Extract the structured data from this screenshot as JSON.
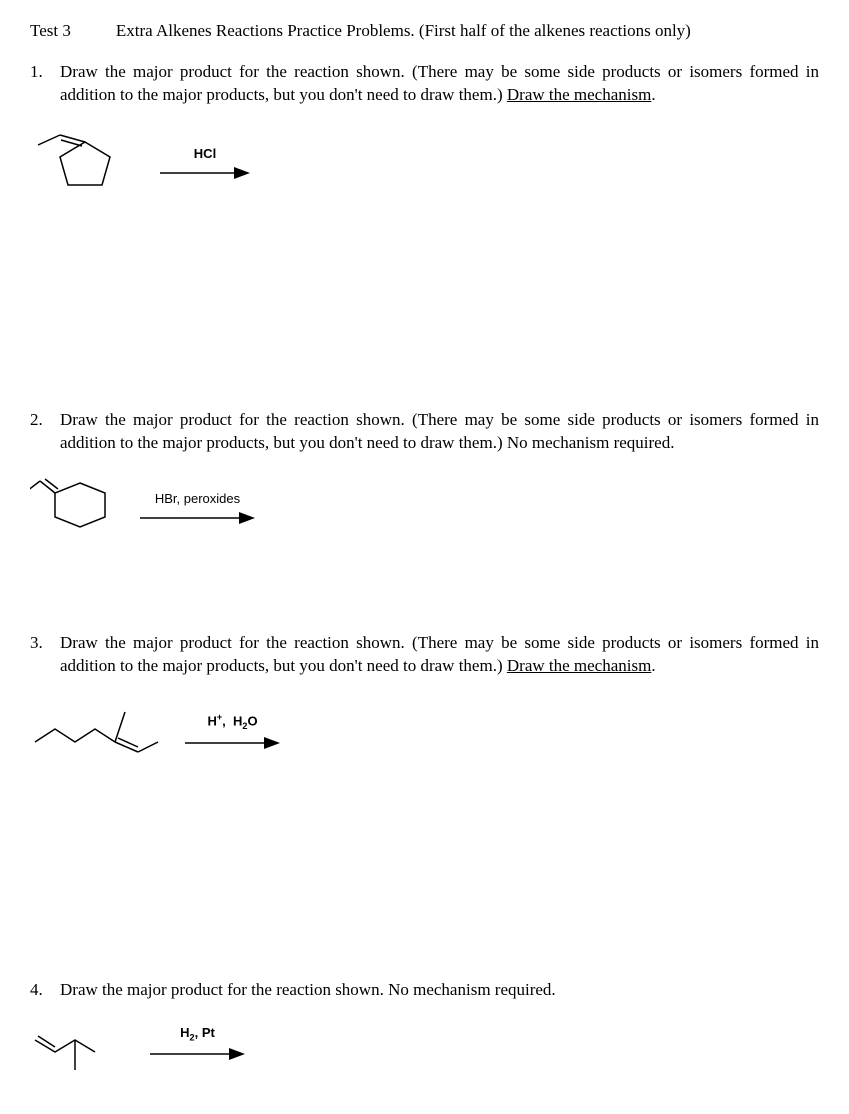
{
  "header": {
    "test_label": "Test 3",
    "title": "Extra Alkenes Reactions Practice Problems.  (First half of the alkenes reactions only)"
  },
  "problems": [
    {
      "num": "1.",
      "text_pre": "Draw the major product for the reaction shown.  (There may be some side products or isomers formed in addition to the major products, but you don't need to draw them.)  ",
      "text_underline": "Draw the mechanism",
      "text_post": ".",
      "reagent": "HCl",
      "reagent_html": "HCl",
      "structure": "cyclopentene-methylene",
      "arrow_width": 90,
      "spacer_after": 170
    },
    {
      "num": "2.",
      "text_pre": "Draw the major product for the reaction shown.  (There may be some side products or isomers formed in addition to the major products, but you don't need to draw them.)  No mechanism required.",
      "text_underline": "",
      "text_post": "",
      "reagent": "HBr, peroxides",
      "reagent_html": "HBr, peroxides",
      "structure": "cyclohexane-propenyl",
      "arrow_width": 115,
      "spacer_after": 50
    },
    {
      "num": "3.",
      "text_pre": "Draw the major product for the reaction shown.  (There may be some side products or isomers formed in addition to the major products, but you don't need to draw them.)  ",
      "text_underline": "Draw the mechanism",
      "text_post": ".",
      "reagent": "H+, H2O",
      "reagent_html": "H<sup>+</sup>,  H<sub>2</sub>O",
      "structure": "ethyl-methylene-pentene",
      "arrow_width": 95,
      "spacer_after": 175
    },
    {
      "num": "4.",
      "text_pre": "Draw the major product for the reaction shown. No mechanism required.",
      "text_underline": "",
      "text_post": "",
      "reagent": "H2, Pt",
      "reagent_html": "H<sub>2</sub>, Pt",
      "structure": "methyl-pentene",
      "arrow_width": 95,
      "spacer_after": 10
    }
  ],
  "colors": {
    "text": "#000000",
    "background": "#ffffff",
    "line": "#000000"
  }
}
